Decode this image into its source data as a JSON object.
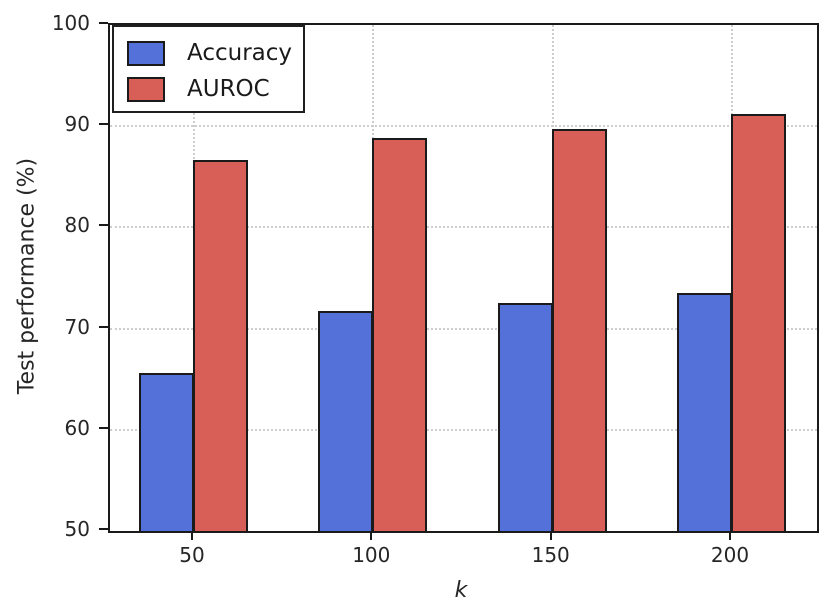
{
  "chart_data": {
    "type": "bar",
    "title": "",
    "xlabel": "k",
    "ylabel": "Test performance (%)",
    "categories": [
      "50",
      "100",
      "150",
      "200"
    ],
    "series": [
      {
        "name": "Accuracy",
        "color": "#5471D9",
        "values": [
          65.6,
          71.7,
          72.5,
          73.5
        ]
      },
      {
        "name": "AUROC",
        "color": "#D75F58",
        "values": [
          86.7,
          88.8,
          89.7,
          91.2
        ]
      }
    ],
    "ylim": [
      50,
      100
    ],
    "yticks": [
      50,
      60,
      70,
      80,
      90,
      100
    ],
    "grid": "dotted",
    "grid_color": "#cdcdcd",
    "bar_edge_color": "#1a1a1a",
    "legend_position": "upper-left"
  }
}
